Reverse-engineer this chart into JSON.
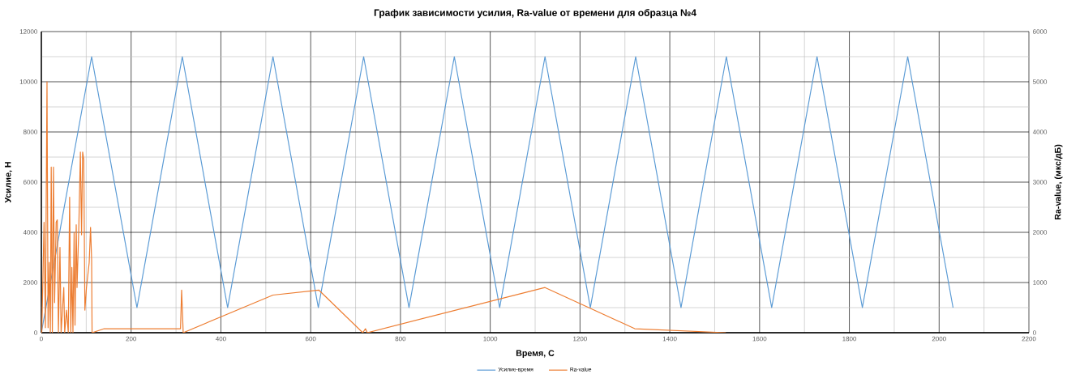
{
  "chart_data": {
    "type": "line",
    "title": "График зависимости усилия, Ra-value от времени для образца №4",
    "xlabel": "Время, С",
    "ylabel": "Усилие, Н",
    "y2label": "Ra-value, (мкс/дБ)",
    "xlim": [
      0,
      2200
    ],
    "xticks": [
      0,
      200,
      400,
      600,
      800,
      1000,
      1200,
      1400,
      1600,
      1800,
      2000,
      2200
    ],
    "ylim": [
      0,
      12000
    ],
    "yticks": [
      0,
      2000,
      4000,
      6000,
      8000,
      10000,
      12000
    ],
    "y2lim": [
      0,
      6000
    ],
    "y2ticks": [
      0,
      1000,
      2000,
      3000,
      4000,
      5000,
      6000
    ],
    "grid": true,
    "legend": "bottom",
    "series": [
      {
        "name": "Усилие-время",
        "color": "#5b9bd5",
        "x": [
          0,
          112,
          213,
          314,
          415,
          516,
          617,
          718,
          819,
          920,
          1021,
          1122,
          1223,
          1324,
          1425,
          1526,
          1627,
          1728,
          1829,
          1930,
          2031
        ],
        "values": [
          0,
          11000,
          1000,
          11000,
          1000,
          11000,
          1000,
          11000,
          1000,
          11000,
          1000,
          11000,
          1000,
          11000,
          1000,
          11000,
          1000,
          11000,
          1000,
          11000,
          1000
        ]
      },
      {
        "name": "Ra-value",
        "color": "#ed7d31",
        "axis": "y2",
        "x": [
          1,
          6,
          9,
          12.6,
          15,
          17.5,
          20,
          22,
          24.5,
          27,
          29.5,
          33,
          35.5,
          38,
          41.5,
          44,
          50,
          52,
          56,
          60,
          63,
          65.6,
          68,
          70.4,
          73,
          75,
          77.7,
          79.5,
          83.6,
          87,
          89.6,
          92,
          94.5,
          97,
          100.5,
          106.6,
          109.6,
          112,
          113,
          140,
          310,
          312.5,
          316,
          516,
          618,
          716,
          722,
          726,
          1122,
          1322,
          1525
        ],
        "values": [
          0,
          2200,
          100,
          5000,
          100,
          1400,
          0,
          3300,
          0,
          3300,
          600,
          2200,
          2250,
          0,
          1700,
          0,
          900,
          0,
          450,
          0,
          2700,
          0,
          1300,
          0,
          2000,
          150,
          2150,
          900,
          2150,
          3600,
          1950,
          3600,
          3450,
          450,
          900,
          1400,
          2100,
          1450,
          0,
          80,
          80,
          850,
          0,
          750,
          850,
          0,
          80,
          0,
          900,
          80,
          0
        ]
      }
    ]
  }
}
